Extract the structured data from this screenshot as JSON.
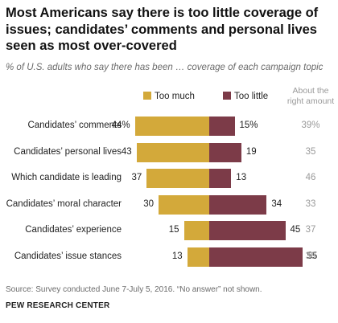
{
  "title": "Most Americans say there is too little coverage of issues; candidates’ comments and personal lives seen as most over-covered",
  "subtitle": "% of U.S. adults who say there has been … coverage of each campaign topic",
  "colors": {
    "too_much": "#d3a93a",
    "too_little": "#7c3b48"
  },
  "chart_data": {
    "type": "bar",
    "orientation": "horizontal-diverging",
    "categories": [
      "Candidates’ comments",
      "Candidates’ personal lives",
      "Which candidate is leading",
      "Candidates’ moral character",
      "Candidates’ experience",
      "Candidates’ issue stances"
    ],
    "series": [
      {
        "name": "Too much",
        "values": [
          44,
          43,
          37,
          30,
          15,
          13
        ],
        "labels": [
          "44%",
          "43",
          "37",
          "30",
          "15",
          "13"
        ]
      },
      {
        "name": "Too little",
        "values": [
          15,
          19,
          13,
          34,
          45,
          55
        ],
        "labels": [
          "15%",
          "19",
          "13",
          "34",
          "45",
          "55"
        ]
      }
    ],
    "extra_column": {
      "header": "About the right amount",
      "values": [
        39,
        35,
        46,
        33,
        37,
        30
      ],
      "labels": [
        "39%",
        "35",
        "46",
        "33",
        "37",
        "30"
      ]
    }
  },
  "footer": {
    "source": "Source: Survey conducted June 7-July 5, 2016. “No answer” not shown.",
    "org": "PEW RESEARCH CENTER"
  }
}
